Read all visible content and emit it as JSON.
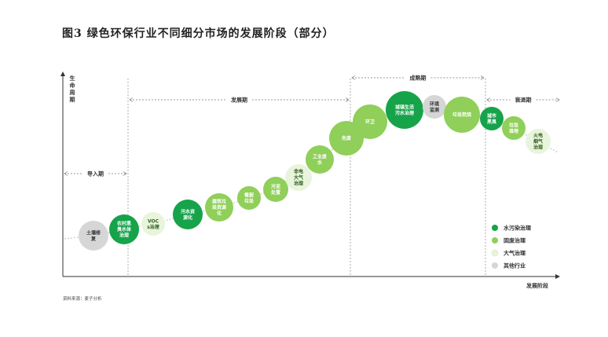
{
  "title": "图3 绿色环保行业不同细分市场的发展阶段（部分）",
  "source": "资料来源：麦子分析",
  "axes": {
    "y_label_lines": [
      "生",
      "命",
      "周",
      "期"
    ],
    "x_label": "发展阶段"
  },
  "phases": [
    {
      "label": "导入期"
    },
    {
      "label": "发展期"
    },
    {
      "label": "成熟期"
    },
    {
      "label": "衰退期"
    }
  ],
  "colors": {
    "water": "#16a34a",
    "solid": "#8fcf5a",
    "air": "#e9f4dc",
    "other": "#d6d6d6"
  },
  "nodes": [
    {
      "category": "other",
      "lines": [
        "土壤修",
        "复"
      ]
    },
    {
      "category": "water",
      "lines": [
        "农村黑",
        "臭水体",
        "治理"
      ]
    },
    {
      "category": "air",
      "lines": [
        "VOC",
        "s治理"
      ]
    },
    {
      "category": "water",
      "lines": [
        "污水资",
        "源化"
      ]
    },
    {
      "category": "solid",
      "lines": [
        "建筑垃",
        "圾资源",
        "化"
      ]
    },
    {
      "category": "solid",
      "lines": [
        "餐厨",
        "垃圾"
      ]
    },
    {
      "category": "solid",
      "lines": [
        "污泥",
        "处置"
      ]
    },
    {
      "category": "air",
      "lines": [
        "非电",
        "大气",
        "治理"
      ]
    },
    {
      "category": "solid",
      "lines": [
        "工业废",
        "水"
      ]
    },
    {
      "category": "solid",
      "lines": [
        "危废"
      ]
    },
    {
      "category": "solid",
      "lines": [
        "环卫"
      ]
    },
    {
      "category": "water",
      "lines": [
        "城镇生活",
        "污水治理"
      ]
    },
    {
      "category": "other",
      "lines": [
        "环境",
        "监测"
      ]
    },
    {
      "category": "solid",
      "lines": [
        "垃圾焚烧"
      ]
    },
    {
      "category": "water",
      "lines": [
        "城市",
        "黑臭"
      ]
    },
    {
      "category": "solid",
      "lines": [
        "垃圾",
        "填埋"
      ]
    },
    {
      "category": "air",
      "lines": [
        "火电",
        "烟气",
        "治理"
      ]
    }
  ],
  "legend": [
    {
      "category": "water",
      "label": "水污染治理"
    },
    {
      "category": "solid",
      "label": "固废治理"
    },
    {
      "category": "air",
      "label": "大气治理"
    },
    {
      "category": "other",
      "label": "其他行业"
    }
  ]
}
